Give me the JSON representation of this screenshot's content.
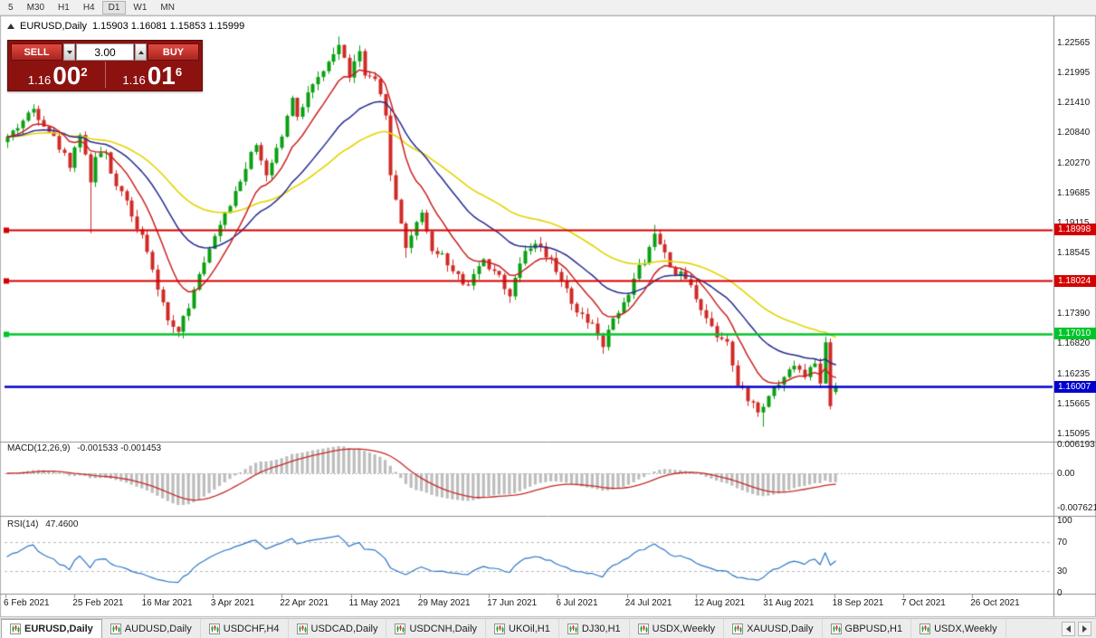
{
  "toolbar": {
    "timeframes": [
      "5",
      "M30",
      "H1",
      "H4",
      "D1",
      "W1",
      "MN"
    ],
    "active": "D1"
  },
  "chart": {
    "title": "EURUSD,Daily",
    "ohlc_text": "1.15903 1.16081 1.15853 1.15999",
    "last_candle": {
      "open": 1.15903,
      "high": 1.16081,
      "low": 1.15853,
      "close": 1.15999
    },
    "trade_panel": {
      "sell_label": "SELL",
      "buy_label": "BUY",
      "volume": "3.00",
      "bid": {
        "prefix": "1.16",
        "big": "00",
        "sup": "2"
      },
      "ask": {
        "prefix": "1.16",
        "big": "01",
        "sup": "6"
      }
    },
    "price_scale": [
      "1.22565",
      "1.21995",
      "1.21410",
      "1.20840",
      "1.20270",
      "1.19685",
      "1.19115",
      "1.18545",
      "1.17960",
      "1.17390",
      "1.16820",
      "1.16235",
      "1.15665",
      "1.15095"
    ],
    "hlines": [
      {
        "price": 1.18998,
        "label": "1.18998",
        "color": "#d40000",
        "width": 2,
        "marker": true
      },
      {
        "price": 1.18024,
        "label": "1.18024",
        "color": "#d40000",
        "width": 2,
        "marker": true
      },
      {
        "price": 1.1701,
        "label": "1.17010",
        "color": "#00c42a",
        "width": 2.5,
        "marker": true
      },
      {
        "price": 1.16007,
        "label": "1.16007",
        "color": "#0000cc",
        "width": 2.5,
        "marker": false
      }
    ],
    "dates": [
      "6 Feb 2021",
      "25 Feb 2021",
      "16 Mar 2021",
      "3 Apr 2021",
      "22 Apr 2021",
      "11 May 2021",
      "29 May 2021",
      "17 Jun 2021",
      "6 Jul 2021",
      "24 Jul 2021",
      "12 Aug 2021",
      "31 Aug 2021",
      "18 Sep 2021",
      "7 Oct 2021",
      "26 Oct 2021"
    ],
    "series_anchors": [
      [
        0,
        1.2075
      ],
      [
        5,
        1.213
      ],
      [
        8,
        1.209
      ],
      [
        12,
        1.2025
      ],
      [
        14,
        1.2085
      ],
      [
        16,
        1.199,
        1.1893,
        null
      ],
      [
        17,
        1.2045
      ],
      [
        19,
        1.204
      ],
      [
        21,
        1.1985
      ],
      [
        24,
        1.193
      ],
      [
        27,
        1.186
      ],
      [
        29,
        1.178
      ],
      [
        31,
        1.173
      ],
      [
        33,
        1.1705,
        1.1695,
        null
      ],
      [
        35,
        1.1755
      ],
      [
        36,
        1.179
      ],
      [
        38,
        1.1835
      ],
      [
        41,
        1.1905
      ],
      [
        43,
        1.1945
      ],
      [
        46,
        1.202
      ],
      [
        48,
        1.206
      ],
      [
        50,
        1.2005
      ],
      [
        53,
        1.208
      ],
      [
        55,
        1.2148
      ],
      [
        56,
        1.2118
      ],
      [
        59,
        1.2178
      ],
      [
        62,
        1.2215
      ],
      [
        64,
        1.2252,
        null,
        1.2268
      ],
      [
        66,
        1.2195
      ],
      [
        68,
        1.2238
      ],
      [
        69,
        1.2192
      ],
      [
        71,
        1.218
      ],
      [
        73,
        1.2125
      ],
      [
        74,
        1.2
      ],
      [
        76,
        1.1915
      ],
      [
        77,
        1.1865,
        1.1846,
        null
      ],
      [
        80,
        1.1932
      ],
      [
        82,
        1.1862
      ],
      [
        84,
        1.1852
      ],
      [
        87,
        1.1815
      ],
      [
        89,
        1.179
      ],
      [
        92,
        1.1843
      ],
      [
        95,
        1.1806
      ],
      [
        97,
        1.1772
      ],
      [
        100,
        1.1858
      ],
      [
        102,
        1.187
      ],
      [
        105,
        1.184
      ],
      [
        108,
        1.1786
      ],
      [
        110,
        1.1742
      ],
      [
        113,
        1.172
      ],
      [
        115,
        1.1676,
        1.1663,
        null
      ],
      [
        117,
        1.1738
      ],
      [
        119,
        1.1756
      ],
      [
        121,
        1.181
      ],
      [
        123,
        1.1842
      ],
      [
        125,
        1.1892,
        null,
        1.1909
      ],
      [
        127,
        1.1852
      ],
      [
        129,
        1.1816
      ],
      [
        131,
        1.1808
      ],
      [
        133,
        1.1772
      ],
      [
        135,
        1.1732
      ],
      [
        137,
        1.17
      ],
      [
        139,
        1.1692
      ],
      [
        140,
        1.164
      ],
      [
        141,
        1.1602
      ],
      [
        143,
        1.158
      ],
      [
        145,
        1.1552
      ],
      [
        146,
        1.1562,
        1.1524,
        null
      ],
      [
        148,
        1.1592
      ],
      [
        150,
        1.1616
      ],
      [
        152,
        1.164
      ],
      [
        154,
        1.1626
      ],
      [
        156,
        1.1652
      ],
      [
        157,
        1.16
      ],
      [
        158,
        1.1685,
        null,
        1.1692
      ],
      [
        159,
        1.1562
      ],
      [
        160,
        1.15999
      ]
    ],
    "colors": {
      "candle_up": "#0aa012",
      "candle_down": "#cf2a27",
      "ma_fast": "#cc2020",
      "ma_mid": "#252a8f",
      "ma_slow": "#e5d400"
    }
  },
  "macd": {
    "name": "MACD(12,26,9)",
    "values": "-0.001533 -0.001453",
    "scale": [
      "0.006193",
      "0.00",
      "-0.007621"
    ],
    "hist_color": "#bdbdbd",
    "signal_color": "#c62828"
  },
  "rsi": {
    "name": "RSI(14)",
    "value": "47.4600",
    "scale": [
      "100",
      "70",
      "30",
      "0"
    ],
    "levels": [
      70,
      30
    ],
    "color": "#2e77c8"
  },
  "tabs": {
    "items": [
      "EURUSD,Daily",
      "AUDUSD,Daily",
      "USDCHF,H4",
      "USDCAD,Daily",
      "USDCNH,Daily",
      "UKOil,H1",
      "DJ30,H1",
      "USDX,Weekly",
      "XAUUSD,Daily",
      "GBPUSD,H1",
      "USDX,Weekly"
    ],
    "active_index": 0
  }
}
